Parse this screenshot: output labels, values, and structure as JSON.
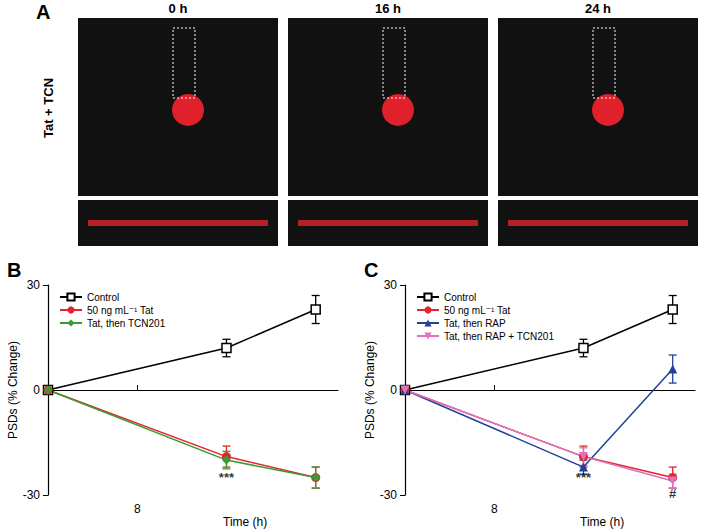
{
  "panel_a": {
    "panel": "A",
    "row_label": "Tat + TCN",
    "columns": [
      "0 h",
      "16 h",
      "24 h"
    ]
  },
  "chart_data": [
    {
      "type": "line",
      "panel": "B",
      "x_label": "Time (h)",
      "y_label": "PSDs (% Change)",
      "xlim": [
        0,
        26
      ],
      "xticks": [
        8
      ],
      "ylim": [
        -30,
        30
      ],
      "yticks": [
        -30,
        0,
        30
      ],
      "grid": false,
      "legend": "upper left",
      "x": [
        0,
        16,
        24
      ],
      "series": [
        {
          "name": "Control",
          "color": "#000000",
          "marker": "open_square",
          "values": [
            0,
            12,
            23
          ],
          "errors": [
            0,
            2.5,
            4
          ]
        },
        {
          "name": "50 ng mL⁻¹ Tat",
          "color": "#e3262b",
          "marker": "circle",
          "values": [
            0,
            -19,
            -25
          ],
          "errors": [
            0,
            3,
            3
          ]
        },
        {
          "name": "Tat, then TCN201",
          "color": "#3a9a35",
          "marker": "diamond",
          "values": [
            0,
            -20,
            -25
          ],
          "errors": [
            0,
            2.5,
            3
          ]
        }
      ],
      "annotations": [
        {
          "text": "***",
          "x": 16,
          "y": -25
        }
      ]
    },
    {
      "type": "line",
      "panel": "C",
      "x_label": "Time (h)",
      "y_label": "PSDs (% Change)",
      "xlim": [
        0,
        26
      ],
      "xticks": [
        8
      ],
      "ylim": [
        -30,
        30
      ],
      "yticks": [
        -30,
        0,
        30
      ],
      "grid": false,
      "legend": "upper left",
      "x": [
        0,
        16,
        24
      ],
      "series": [
        {
          "name": "Control",
          "color": "#000000",
          "marker": "open_square",
          "values": [
            0,
            12,
            23
          ],
          "errors": [
            0,
            2.5,
            4
          ]
        },
        {
          "name": "50 ng mL⁻¹ Tat",
          "color": "#e3262b",
          "marker": "circle",
          "values": [
            0,
            -19,
            -25
          ],
          "errors": [
            0,
            3,
            3
          ]
        },
        {
          "name": "Tat, then RAP",
          "color": "#23409a",
          "marker": "triangle",
          "values": [
            0,
            -22,
            6
          ],
          "errors": [
            0,
            2,
            4
          ]
        },
        {
          "name": "Tat, then RAP + TCN201",
          "color": "#e070c0",
          "marker": "triangle_down",
          "values": [
            0,
            -19,
            -26
          ],
          "errors": [
            0,
            2.5,
            2
          ]
        }
      ],
      "annotations": [
        {
          "text": "***",
          "x": 16,
          "y": -25
        },
        {
          "text": "#",
          "x": 24,
          "y": -29.5
        }
      ]
    }
  ]
}
